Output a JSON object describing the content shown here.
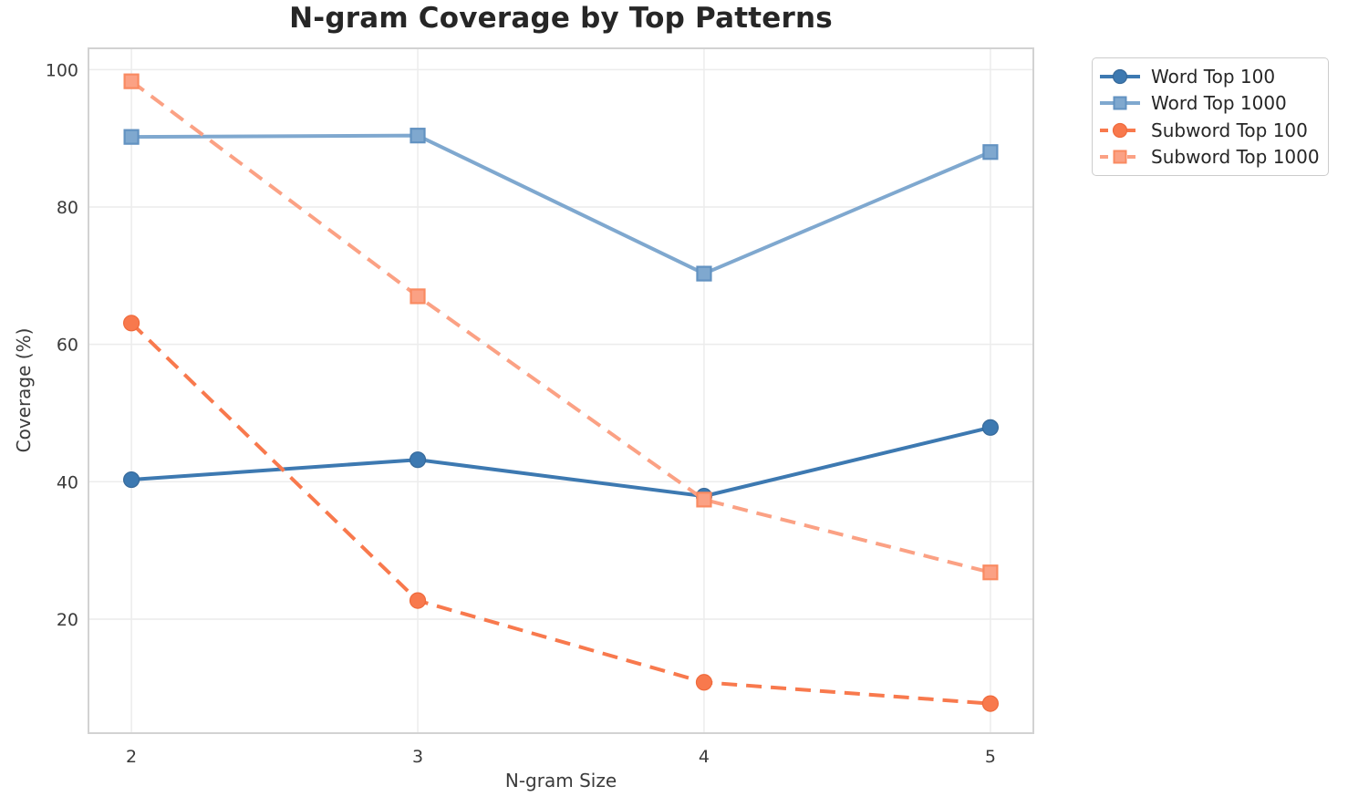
{
  "title": "N-gram Coverage by Top Patterns",
  "chart_data": {
    "type": "line",
    "title": "N-gram Coverage by Top Patterns",
    "xlabel": "N-gram Size",
    "ylabel": "Coverage (%)",
    "x": [
      2,
      3,
      4,
      5
    ],
    "x_tick_labels": [
      "2",
      "3",
      "4",
      "5"
    ],
    "y_ticks": [
      20,
      40,
      60,
      80,
      100
    ],
    "xlim": [
      1.85,
      5.15
    ],
    "ylim": [
      3.4,
      103.1
    ],
    "grid": true,
    "legend_position": "outside-upper-right",
    "series": [
      {
        "name": "Word Top 100",
        "values": [
          40.3,
          43.2,
          37.9,
          47.9
        ],
        "color": "#3d79b1",
        "edge_color": "#36699a",
        "marker": "circle",
        "line_style": "solid"
      },
      {
        "name": "Word Top 1000",
        "values": [
          90.2,
          90.4,
          70.3,
          88.0
        ],
        "color": "#7fa8cf",
        "edge_color": "#6292c1",
        "marker": "square",
        "line_style": "solid"
      },
      {
        "name": "Subword Top 100",
        "values": [
          63.1,
          22.7,
          10.8,
          7.7
        ],
        "color": "#f8794d",
        "edge_color": "#ef6a3c",
        "marker": "circle",
        "line_style": "dashed"
      },
      {
        "name": "Subword Top 1000",
        "values": [
          98.3,
          67.0,
          37.4,
          26.8
        ],
        "color": "#fba184",
        "edge_color": "#f98a61",
        "marker": "square",
        "line_style": "dashed"
      }
    ]
  },
  "colors": {
    "background": "#ffffff",
    "grid": "#ececec",
    "spine": "#d2d2d2",
    "title_text": "#262626",
    "tick_text": "#3b3b3b",
    "legend_border": "#cccccc"
  }
}
